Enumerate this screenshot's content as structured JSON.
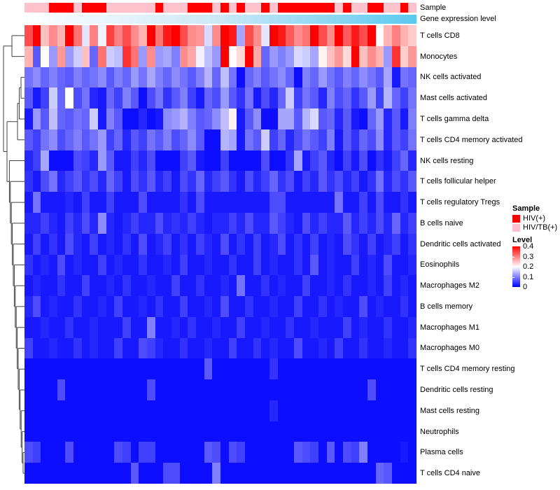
{
  "annotations": {
    "sample_label": "Sample",
    "gene_label": "Gene expression level",
    "group_colors": {
      "HIV(+)": "#FF0000",
      "HIV/TB(+)": "#FFC2CD"
    },
    "sample_groups_by_column": [
      "HIV/TB(+)",
      "HIV/TB(+)",
      "HIV/TB(+)",
      "HIV(+)",
      "HIV(+)",
      "HIV(+)",
      "HIV/TB(+)",
      "HIV(+)",
      "HIV(+)",
      "HIV(+)",
      "HIV/TB(+)",
      "HIV/TB(+)",
      "HIV/TB(+)",
      "HIV/TB(+)",
      "HIV/TB(+)",
      "HIV/TB(+)",
      "HIV(+)",
      "HIV/TB(+)",
      "HIV/TB(+)",
      "HIV/TB(+)",
      "HIV(+)",
      "HIV(+)",
      "HIV(+)",
      "HIV/TB(+)",
      "HIV(+)",
      "HIV/TB(+)",
      "HIV(+)",
      "HIV/TB(+)",
      "HIV/TB(+)",
      "HIV(+)",
      "HIV/TB(+)",
      "HIV(+)",
      "HIV(+)",
      "HIV(+)",
      "HIV(+)",
      "HIV(+)",
      "HIV(+)",
      "HIV(+)",
      "HIV/TB(+)",
      "HIV(+)",
      "HIV/TB(+)",
      "HIV/TB(+)",
      "HIV(+)",
      "HIV(+)",
      "HIV/TB(+)",
      "HIV/TB(+)",
      "HIV(+)",
      "HIV/TB(+)"
    ],
    "gene_expression_gradient": [
      "#FEFEFF",
      "#CBE8F7",
      "#5BCAEF"
    ]
  },
  "legend": {
    "sample_title": "Sample",
    "sample_items": [
      {
        "label": "HIV(+)",
        "color": "#FF0000"
      },
      {
        "label": "HIV/TB(+)",
        "color": "#FFC2CD"
      }
    ],
    "level_title": "Level",
    "level_ticks": [
      "0.4",
      "0.3",
      "0.2",
      "0.1",
      "0"
    ],
    "level_colormap": {
      "low": "#0000FF",
      "mid": "#FFFFFF",
      "high": "#FF0000",
      "domain": [
        0,
        0.2,
        0.4
      ]
    }
  },
  "chart_data": {
    "type": "heatmap",
    "colormap": "blue-white-red",
    "value_range": [
      0,
      0.4
    ],
    "n_columns": 48,
    "column_labels": "none shown (48 unlabeled samples)",
    "row_dendrogram": true,
    "rows": [
      "T cells CD8",
      "Monocytes",
      "NK cells activated",
      "Mast cells activated",
      "T cells gamma delta",
      "T cells CD4 memory activated",
      "NK cells resting",
      "T cells follicular helper",
      "T cells regulatory  Tregs",
      "B cells naive",
      "Dendritic cells activated",
      "Eosinophils",
      "Macrophages M2",
      "B cells memory",
      "Macrophages M1",
      "Macrophages M0",
      "T cells CD4 memory resting",
      "Dendritic cells resting",
      "Mast cells resting",
      "Neutrophils",
      "Plasma cells",
      "T cells CD4 naive"
    ],
    "values": [
      [
        0.34,
        0.4,
        0.25,
        0.29,
        0.26,
        0.4,
        0.31,
        0.18,
        0.3,
        0.19,
        0.35,
        0.3,
        0.34,
        0.29,
        0.26,
        0.4,
        0.31,
        0.38,
        0.4,
        0.34,
        0.29,
        0.28,
        0.17,
        0.29,
        0.4,
        0.38,
        0.13,
        0.34,
        0.29,
        0.18,
        0.4,
        0.38,
        0.33,
        0.29,
        0.31,
        0.4,
        0.34,
        0.29,
        0.4,
        0.33,
        0.38,
        0.34,
        0.4,
        0.2,
        0.26,
        0.3,
        0.26,
        0.24
      ],
      [
        0.26,
        0.07,
        0.2,
        0.12,
        0.28,
        0.12,
        0.16,
        0.25,
        0.08,
        0.31,
        0.16,
        0.15,
        0.36,
        0.31,
        0.12,
        0.29,
        0.12,
        0.13,
        0.1,
        0.29,
        0.27,
        0.19,
        0.15,
        0.12,
        0.4,
        0.2,
        0.23,
        0.4,
        0.27,
        0.08,
        0.12,
        0.1,
        0.12,
        0.17,
        0.16,
        0.13,
        0.21,
        0.25,
        0.28,
        0.23,
        0.4,
        0.25,
        0.29,
        0.26,
        0.12,
        0.36,
        0.24,
        0.28
      ],
      [
        0.09,
        0.11,
        0.08,
        0.1,
        0.08,
        0.07,
        0.1,
        0.08,
        0.09,
        0.11,
        0.07,
        0.1,
        0.08,
        0.12,
        0.09,
        0.13,
        0.1,
        0.08,
        0.11,
        0.09,
        0.07,
        0.1,
        0.14,
        0.08,
        0.15,
        0.09,
        0.01,
        0.08,
        0.1,
        0.07,
        0.09,
        0.11,
        0.08,
        0.01,
        0.1,
        0.08,
        0.12,
        0.09,
        0.07,
        0.1,
        0.08,
        0.11,
        0.09,
        0.07,
        0.13,
        0.02,
        0.09,
        0.08
      ],
      [
        0.07,
        0.02,
        0.05,
        0.16,
        0.08,
        0.2,
        0.06,
        0.09,
        0.03,
        0.02,
        0.08,
        0.05,
        0.1,
        0.07,
        0.01,
        0.06,
        0.09,
        0.04,
        0.07,
        0.1,
        0.05,
        0.02,
        0.08,
        0.06,
        0.12,
        0.07,
        0.04,
        0.09,
        0.02,
        0.06,
        0.03,
        0.08,
        0.16,
        0.05,
        0.09,
        0.07,
        0.03,
        0.1,
        0.06,
        0.08,
        0.04,
        0.07,
        0.12,
        0.05,
        0.14,
        0.08,
        0.05,
        0.09
      ],
      [
        0.02,
        0.12,
        0.07,
        0.15,
        0.08,
        0.07,
        0.09,
        0.08,
        0.16,
        0.02,
        0.1,
        0.07,
        0.01,
        0.01,
        0.03,
        0.01,
        0.02,
        0.11,
        0.12,
        0.14,
        0.1,
        0.07,
        0.08,
        0.11,
        0.15,
        0.21,
        0.02,
        0.07,
        0.11,
        0.01,
        0.01,
        0.13,
        0.13,
        0.07,
        0.14,
        0.17,
        0.07,
        0.08,
        0.03,
        0.07,
        0.02,
        0.01,
        0.08,
        0.12,
        0.03,
        0.07,
        0.02,
        0.1
      ],
      [
        0.07,
        0.05,
        0.09,
        0.11,
        0.06,
        0.08,
        0.1,
        0.07,
        0.09,
        0.12,
        0.05,
        0.08,
        0.03,
        0.07,
        0.05,
        0.09,
        0.07,
        0.1,
        0.06,
        0.08,
        0.11,
        0.07,
        0.01,
        0.01,
        0.14,
        0.13,
        0.02,
        0.09,
        0.07,
        0.16,
        0.05,
        0.08,
        0.03,
        0.06,
        0.09,
        0.07,
        0.05,
        0.1,
        0.02,
        0.07,
        0.04,
        0.08,
        0.06,
        0.11,
        0.03,
        0.07,
        0.05,
        0.09
      ],
      [
        0.03,
        0.05,
        0.13,
        0.01,
        0.01,
        0.01,
        0.06,
        0.05,
        0.03,
        0.12,
        0.07,
        0.02,
        0.02,
        0.05,
        0.03,
        0.06,
        0.01,
        0.01,
        0.01,
        0.05,
        0.07,
        0.02,
        0.01,
        0.01,
        0.05,
        0.01,
        0.01,
        0.01,
        0.01,
        0.06,
        0.01,
        0.01,
        0.04,
        0.13,
        0.02,
        0.05,
        0.07,
        0.03,
        0.01,
        0.05,
        0.02,
        0.06,
        0.01,
        0.04,
        0.02,
        0.05,
        0.08,
        0.03
      ],
      [
        0.04,
        0.02,
        0.06,
        0.09,
        0.03,
        0.05,
        0.07,
        0.04,
        0.06,
        0.03,
        0.08,
        0.05,
        0.02,
        0.06,
        0.04,
        0.07,
        0.03,
        0.05,
        0.02,
        0.06,
        0.04,
        0.08,
        0.03,
        0.05,
        0.07,
        0.04,
        0.02,
        0.06,
        0.03,
        0.05,
        0.08,
        0.04,
        0.06,
        0.02,
        0.05,
        0.03,
        0.07,
        0.04,
        0.06,
        0.03,
        0.05,
        0.02,
        0.04,
        0.09,
        0.03,
        0.06,
        0.04,
        0.07
      ],
      [
        0.02,
        0.09,
        0.02,
        0.02,
        0.02,
        0.03,
        0.02,
        0.05,
        0.02,
        0.02,
        0.05,
        0.02,
        0.02,
        0.02,
        0.06,
        0.02,
        0.02,
        0.02,
        0.02,
        0.04,
        0.02,
        0.06,
        0.02,
        0.02,
        0.02,
        0.02,
        0.02,
        0.02,
        0.02,
        0.02,
        0.06,
        0.06,
        0.02,
        0.02,
        0.02,
        0.02,
        0.02,
        0.02,
        0.09,
        0.02,
        0.02,
        0.05,
        0.02,
        0.06,
        0.02,
        0.02,
        0.04,
        0.02
      ],
      [
        0.03,
        0.03,
        0.05,
        0.03,
        0.02,
        0.05,
        0.03,
        0.06,
        0.03,
        0.11,
        0.03,
        0.02,
        0.03,
        0.05,
        0.03,
        0.03,
        0.06,
        0.03,
        0.04,
        0.03,
        0.05,
        0.03,
        0.02,
        0.03,
        0.03,
        0.05,
        0.03,
        0.06,
        0.03,
        0.03,
        0.07,
        0.05,
        0.03,
        0.02,
        0.06,
        0.03,
        0.05,
        0.03,
        0.03,
        0.07,
        0.03,
        0.05,
        0.03,
        0.06,
        0.03,
        0.08,
        0.03,
        0.05
      ],
      [
        0.02,
        0.05,
        0.02,
        0.04,
        0.02,
        0.06,
        0.03,
        0.02,
        0.05,
        0.02,
        0.03,
        0.02,
        0.04,
        0.02,
        0.06,
        0.02,
        0.03,
        0.05,
        0.02,
        0.04,
        0.02,
        0.05,
        0.03,
        0.02,
        0.06,
        0.02,
        0.04,
        0.02,
        0.05,
        0.02,
        0.03,
        0.06,
        0.02,
        0.04,
        0.02,
        0.05,
        0.02,
        0.03,
        0.02,
        0.06,
        0.04,
        0.02,
        0.05,
        0.02,
        0.03,
        0.05,
        0.02,
        0.04
      ],
      [
        0.04,
        0.02,
        0.03,
        0.02,
        0.06,
        0.02,
        0.03,
        0.02,
        0.02,
        0.05,
        0.02,
        0.03,
        0.02,
        0.02,
        0.04,
        0.02,
        0.02,
        0.03,
        0.02,
        0.05,
        0.02,
        0.02,
        0.03,
        0.02,
        0.02,
        0.04,
        0.02,
        0.02,
        0.05,
        0.02,
        0.03,
        0.02,
        0.02,
        0.04,
        0.02,
        0.07,
        0.02,
        0.03,
        0.02,
        0.02,
        0.05,
        0.02,
        0.03,
        0.02,
        0.06,
        0.02,
        0.02,
        0.03
      ],
      [
        0.02,
        0.03,
        0.02,
        0.02,
        0.04,
        0.02,
        0.02,
        0.05,
        0.02,
        0.02,
        0.03,
        0.02,
        0.04,
        0.02,
        0.02,
        0.03,
        0.02,
        0.02,
        0.05,
        0.02,
        0.02,
        0.04,
        0.02,
        0.02,
        0.03,
        0.02,
        0.09,
        0.02,
        0.02,
        0.04,
        0.02,
        0.03,
        0.02,
        0.02,
        0.05,
        0.02,
        0.02,
        0.03,
        0.02,
        0.04,
        0.02,
        0.02,
        0.03,
        0.02,
        0.05,
        0.02,
        0.03,
        0.02
      ],
      [
        0.03,
        0.06,
        0.02,
        0.03,
        0.02,
        0.02,
        0.04,
        0.02,
        0.02,
        0.03,
        0.02,
        0.05,
        0.02,
        0.02,
        0.03,
        0.02,
        0.04,
        0.02,
        0.02,
        0.05,
        0.02,
        0.02,
        0.03,
        0.02,
        0.06,
        0.02,
        0.02,
        0.04,
        0.02,
        0.02,
        0.03,
        0.02,
        0.02,
        0.05,
        0.02,
        0.02,
        0.04,
        0.02,
        0.03,
        0.02,
        0.02,
        0.06,
        0.02,
        0.03,
        0.02,
        0.02,
        0.04,
        0.02
      ],
      [
        0.02,
        0.02,
        0.03,
        0.02,
        0.02,
        0.04,
        0.02,
        0.02,
        0.03,
        0.02,
        0.02,
        0.02,
        0.05,
        0.02,
        0.02,
        0.1,
        0.02,
        0.02,
        0.03,
        0.02,
        0.04,
        0.02,
        0.02,
        0.03,
        0.02,
        0.02,
        0.05,
        0.02,
        0.02,
        0.03,
        0.02,
        0.02,
        0.04,
        0.02,
        0.02,
        0.03,
        0.02,
        0.02,
        0.02,
        0.05,
        0.02,
        0.03,
        0.02,
        0.02,
        0.04,
        0.02,
        0.02,
        0.03
      ],
      [
        0.05,
        0.02,
        0.02,
        0.03,
        0.02,
        0.02,
        0.04,
        0.02,
        0.03,
        0.02,
        0.02,
        0.05,
        0.02,
        0.02,
        0.06,
        0.05,
        0.03,
        0.02,
        0.02,
        0.04,
        0.02,
        0.02,
        0.03,
        0.02,
        0.02,
        0.05,
        0.02,
        0.02,
        0.04,
        0.02,
        0.03,
        0.02,
        0.02,
        0.06,
        0.02,
        0.02,
        0.03,
        0.02,
        0.05,
        0.02,
        0.02,
        0.04,
        0.02,
        0.02,
        0.03,
        0.02,
        0.02,
        0.04
      ],
      [
        0.01,
        0.01,
        0.01,
        0.01,
        0.01,
        0.01,
        0.01,
        0.01,
        0.01,
        0.01,
        0.01,
        0.01,
        0.01,
        0.01,
        0.01,
        0.01,
        0.01,
        0.01,
        0.01,
        0.01,
        0.01,
        0.01,
        0.07,
        0.01,
        0.01,
        0.01,
        0.01,
        0.01,
        0.01,
        0.01,
        0.04,
        0.01,
        0.01,
        0.01,
        0.01,
        0.01,
        0.01,
        0.01,
        0.01,
        0.01,
        0.01,
        0.01,
        0.01,
        0.01,
        0.01,
        0.01,
        0.01,
        0.01
      ],
      [
        0.01,
        0.01,
        0.01,
        0.01,
        0.06,
        0.01,
        0.01,
        0.01,
        0.01,
        0.01,
        0.01,
        0.01,
        0.01,
        0.01,
        0.01,
        0.06,
        0.01,
        0.01,
        0.01,
        0.01,
        0.01,
        0.01,
        0.01,
        0.01,
        0.01,
        0.01,
        0.01,
        0.01,
        0.01,
        0.01,
        0.01,
        0.01,
        0.01,
        0.01,
        0.01,
        0.01,
        0.01,
        0.01,
        0.01,
        0.01,
        0.01,
        0.01,
        0.06,
        0.01,
        0.01,
        0.01,
        0.01,
        0.01
      ],
      [
        0.01,
        0.01,
        0.01,
        0.01,
        0.01,
        0.01,
        0.01,
        0.01,
        0.01,
        0.01,
        0.01,
        0.01,
        0.01,
        0.01,
        0.01,
        0.01,
        0.01,
        0.01,
        0.01,
        0.01,
        0.01,
        0.01,
        0.01,
        0.01,
        0.01,
        0.01,
        0.01,
        0.01,
        0.01,
        0.01,
        0.03,
        0.01,
        0.01,
        0.01,
        0.01,
        0.01,
        0.01,
        0.01,
        0.01,
        0.01,
        0.01,
        0.01,
        0.01,
        0.01,
        0.01,
        0.01,
        0.01,
        0.01
      ],
      [
        0.01,
        0.01,
        0.01,
        0.01,
        0.01,
        0.01,
        0.01,
        0.01,
        0.01,
        0.01,
        0.01,
        0.01,
        0.01,
        0.01,
        0.01,
        0.01,
        0.01,
        0.01,
        0.01,
        0.01,
        0.01,
        0.01,
        0.01,
        0.01,
        0.01,
        0.01,
        0.01,
        0.01,
        0.01,
        0.01,
        0.01,
        0.01,
        0.01,
        0.01,
        0.01,
        0.01,
        0.01,
        0.01,
        0.01,
        0.01,
        0.01,
        0.01,
        0.01,
        0.01,
        0.01,
        0.01,
        0.01,
        0.01
      ],
      [
        0.06,
        0.05,
        0.01,
        0.01,
        0.01,
        0.06,
        0.01,
        0.01,
        0.01,
        0.01,
        0.01,
        0.06,
        0.05,
        0.01,
        0.05,
        0.05,
        0.01,
        0.01,
        0.01,
        0.01,
        0.01,
        0.01,
        0.07,
        0.06,
        0.01,
        0.06,
        0.05,
        0.01,
        0.01,
        0.01,
        0.01,
        0.01,
        0.01,
        0.07,
        0.06,
        0.05,
        0.01,
        0.07,
        0.01,
        0.06,
        0.05,
        0.1,
        0.01,
        0.01,
        0.01,
        0.01,
        0.02,
        0.01
      ],
      [
        0.01,
        0.01,
        0.01,
        0.01,
        0.01,
        0.01,
        0.01,
        0.01,
        0.01,
        0.01,
        0.01,
        0.01,
        0.01,
        0.07,
        0.01,
        0.01,
        0.01,
        0.06,
        0.06,
        0.01,
        0.01,
        0.01,
        0.01,
        0.1,
        0.01,
        0.01,
        0.01,
        0.01,
        0.01,
        0.01,
        0.01,
        0.01,
        0.01,
        0.01,
        0.01,
        0.01,
        0.01,
        0.01,
        0.01,
        0.01,
        0.01,
        0.01,
        0.01,
        0.08,
        0.07,
        0.01,
        0.01,
        0.01
      ]
    ]
  }
}
